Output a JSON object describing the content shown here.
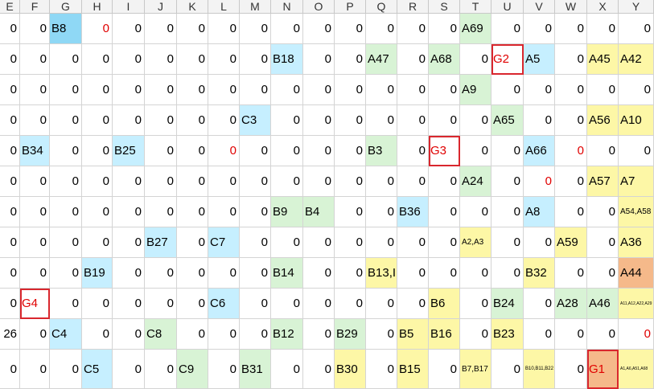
{
  "column_headers": [
    "E",
    "F",
    "G",
    "H",
    "I",
    "J",
    "K",
    "L",
    "M",
    "N",
    "O",
    "P",
    "Q",
    "R",
    "S",
    "T",
    "U",
    "V",
    "W",
    "X",
    "Y"
  ],
  "colors": {
    "blue": "#c6efff",
    "blue_strong": "#8fd8f5",
    "green": "#d8f3d5",
    "yellow": "#fdf7a6",
    "orange": "#f5b98a",
    "alert_red": "#d9272e"
  },
  "rows": [
    [
      {
        "t": "0"
      },
      {
        "t": "0"
      },
      {
        "t": "B8",
        "c": "blue_strong"
      },
      {
        "t": "0",
        "red": true
      },
      {
        "t": "0"
      },
      {
        "t": "0"
      },
      {
        "t": "0"
      },
      {
        "t": "0"
      },
      {
        "t": "0"
      },
      {
        "t": "0"
      },
      {
        "t": "0"
      },
      {
        "t": "0"
      },
      {
        "t": "0"
      },
      {
        "t": "0"
      },
      {
        "t": "0"
      },
      {
        "t": "A69",
        "c": "green"
      },
      {
        "t": "0"
      },
      {
        "t": "0"
      },
      {
        "t": "0"
      },
      {
        "t": "0"
      },
      {
        "t": "0"
      }
    ],
    [
      {
        "t": "0"
      },
      {
        "t": "0"
      },
      {
        "t": "0"
      },
      {
        "t": "0"
      },
      {
        "t": "0"
      },
      {
        "t": "0"
      },
      {
        "t": "0"
      },
      {
        "t": "0"
      },
      {
        "t": "0"
      },
      {
        "t": "B18",
        "c": "blue"
      },
      {
        "t": "0"
      },
      {
        "t": "0"
      },
      {
        "t": "A47",
        "c": "green"
      },
      {
        "t": "0"
      },
      {
        "t": "A68",
        "c": "green"
      },
      {
        "t": "0"
      },
      {
        "t": "G2",
        "red": true,
        "box": true
      },
      {
        "t": "A5",
        "c": "blue"
      },
      {
        "t": "0"
      },
      {
        "t": "A45",
        "c": "yellow"
      },
      {
        "t": "A42",
        "c": "yellow"
      }
    ],
    [
      {
        "t": "0"
      },
      {
        "t": "0"
      },
      {
        "t": "0"
      },
      {
        "t": "0"
      },
      {
        "t": "0"
      },
      {
        "t": "0"
      },
      {
        "t": "0"
      },
      {
        "t": "0"
      },
      {
        "t": "0"
      },
      {
        "t": "0"
      },
      {
        "t": "0"
      },
      {
        "t": "0"
      },
      {
        "t": "0"
      },
      {
        "t": "0"
      },
      {
        "t": "0"
      },
      {
        "t": "A9",
        "c": "green"
      },
      {
        "t": "0"
      },
      {
        "t": "0"
      },
      {
        "t": "0"
      },
      {
        "t": "0"
      },
      {
        "t": "0"
      }
    ],
    [
      {
        "t": "0"
      },
      {
        "t": "0"
      },
      {
        "t": "0"
      },
      {
        "t": "0"
      },
      {
        "t": "0"
      },
      {
        "t": "0"
      },
      {
        "t": "0"
      },
      {
        "t": "0"
      },
      {
        "t": "C3",
        "c": "blue"
      },
      {
        "t": "0"
      },
      {
        "t": "0"
      },
      {
        "t": "0"
      },
      {
        "t": "0"
      },
      {
        "t": "0"
      },
      {
        "t": "0"
      },
      {
        "t": "0"
      },
      {
        "t": "A65",
        "c": "green"
      },
      {
        "t": "0"
      },
      {
        "t": "0"
      },
      {
        "t": "A56",
        "c": "yellow"
      },
      {
        "t": "A10",
        "c": "yellow"
      }
    ],
    [
      {
        "t": "0"
      },
      {
        "t": "B34",
        "c": "blue"
      },
      {
        "t": "0"
      },
      {
        "t": "0"
      },
      {
        "t": "B25",
        "c": "blue"
      },
      {
        "t": "0"
      },
      {
        "t": "0"
      },
      {
        "t": "0",
        "red": true
      },
      {
        "t": "0"
      },
      {
        "t": "0"
      },
      {
        "t": "0"
      },
      {
        "t": "0"
      },
      {
        "t": "B3",
        "c": "green"
      },
      {
        "t": "0"
      },
      {
        "t": "G3",
        "red": true,
        "box": true
      },
      {
        "t": "0"
      },
      {
        "t": "0"
      },
      {
        "t": "A66",
        "c": "blue"
      },
      {
        "t": "0",
        "red": true
      },
      {
        "t": "0"
      },
      {
        "t": "0"
      }
    ],
    [
      {
        "t": "0"
      },
      {
        "t": "0"
      },
      {
        "t": "0"
      },
      {
        "t": "0"
      },
      {
        "t": "0"
      },
      {
        "t": "0"
      },
      {
        "t": "0"
      },
      {
        "t": "0"
      },
      {
        "t": "0"
      },
      {
        "t": "0"
      },
      {
        "t": "0"
      },
      {
        "t": "0"
      },
      {
        "t": "0"
      },
      {
        "t": "0"
      },
      {
        "t": "0"
      },
      {
        "t": "A24",
        "c": "green"
      },
      {
        "t": "0"
      },
      {
        "t": "0",
        "red": true
      },
      {
        "t": "0"
      },
      {
        "t": "A57",
        "c": "yellow"
      },
      {
        "t": "A7",
        "c": "yellow"
      }
    ],
    [
      {
        "t": "0"
      },
      {
        "t": "0"
      },
      {
        "t": "0"
      },
      {
        "t": "0"
      },
      {
        "t": "0"
      },
      {
        "t": "0"
      },
      {
        "t": "0"
      },
      {
        "t": "0"
      },
      {
        "t": "0"
      },
      {
        "t": "B9",
        "c": "green"
      },
      {
        "t": "B4",
        "c": "green"
      },
      {
        "t": "0"
      },
      {
        "t": "0"
      },
      {
        "t": "B36",
        "c": "blue"
      },
      {
        "t": "0"
      },
      {
        "t": "0"
      },
      {
        "t": "0"
      },
      {
        "t": "A8",
        "c": "blue"
      },
      {
        "t": "0"
      },
      {
        "t": "0"
      },
      {
        "t": "A54,A58",
        "c": "yellow",
        "s": "sm"
      }
    ],
    [
      {
        "t": "0"
      },
      {
        "t": "0"
      },
      {
        "t": "0"
      },
      {
        "t": "0"
      },
      {
        "t": "0"
      },
      {
        "t": "B27",
        "c": "blue"
      },
      {
        "t": "0"
      },
      {
        "t": "C7",
        "c": "blue"
      },
      {
        "t": "0"
      },
      {
        "t": "0"
      },
      {
        "t": "0"
      },
      {
        "t": "0"
      },
      {
        "t": "0"
      },
      {
        "t": "0"
      },
      {
        "t": "0"
      },
      {
        "t": "A2,A3",
        "c": "yellow",
        "s": "sm"
      },
      {
        "t": "0"
      },
      {
        "t": "0"
      },
      {
        "t": "A59",
        "c": "yellow"
      },
      {
        "t": "0"
      },
      {
        "t": "A36",
        "c": "yellow"
      }
    ],
    [
      {
        "t": "0"
      },
      {
        "t": "0"
      },
      {
        "t": "0"
      },
      {
        "t": "B19",
        "c": "blue"
      },
      {
        "t": "0"
      },
      {
        "t": "0"
      },
      {
        "t": "0"
      },
      {
        "t": "0"
      },
      {
        "t": "0"
      },
      {
        "t": "B14",
        "c": "green"
      },
      {
        "t": "0"
      },
      {
        "t": "0"
      },
      {
        "t": "B13,I",
        "c": "yellow"
      },
      {
        "t": "0"
      },
      {
        "t": "0"
      },
      {
        "t": "0"
      },
      {
        "t": "0"
      },
      {
        "t": "B32",
        "c": "yellow"
      },
      {
        "t": "0"
      },
      {
        "t": "0"
      },
      {
        "t": "A44",
        "c": "orange"
      }
    ],
    [
      {
        "t": "0"
      },
      {
        "t": "G4",
        "red": true,
        "box": true
      },
      {
        "t": "0"
      },
      {
        "t": "0"
      },
      {
        "t": "0"
      },
      {
        "t": "0"
      },
      {
        "t": "0"
      },
      {
        "t": "C6",
        "c": "blue"
      },
      {
        "t": "0"
      },
      {
        "t": "0"
      },
      {
        "t": "0"
      },
      {
        "t": "0"
      },
      {
        "t": "0"
      },
      {
        "t": "0"
      },
      {
        "t": "B6",
        "c": "yellow"
      },
      {
        "t": "0"
      },
      {
        "t": "B24",
        "c": "green"
      },
      {
        "t": "0"
      },
      {
        "t": "A28",
        "c": "green"
      },
      {
        "t": "A46",
        "c": "green"
      },
      {
        "t": "A11,A12,A22,A29",
        "c": "yellow",
        "s": "xxs"
      }
    ],
    [
      {
        "t": "26"
      },
      {
        "t": "0"
      },
      {
        "t": "C4",
        "c": "blue"
      },
      {
        "t": "0"
      },
      {
        "t": "0"
      },
      {
        "t": "C8",
        "c": "green"
      },
      {
        "t": "0"
      },
      {
        "t": "0"
      },
      {
        "t": "0"
      },
      {
        "t": "B12",
        "c": "green"
      },
      {
        "t": "0"
      },
      {
        "t": "B29",
        "c": "green"
      },
      {
        "t": "0"
      },
      {
        "t": "B5",
        "c": "yellow"
      },
      {
        "t": "B16",
        "c": "yellow"
      },
      {
        "t": "0"
      },
      {
        "t": "B23",
        "c": "yellow"
      },
      {
        "t": "0"
      },
      {
        "t": "0"
      },
      {
        "t": "0"
      },
      {
        "t": "0",
        "red": true
      }
    ],
    [
      {
        "t": "0"
      },
      {
        "t": "0"
      },
      {
        "t": "0"
      },
      {
        "t": "C5",
        "c": "blue"
      },
      {
        "t": "0"
      },
      {
        "t": "0"
      },
      {
        "t": "C9",
        "c": "green"
      },
      {
        "t": "0"
      },
      {
        "t": "B31",
        "c": "green"
      },
      {
        "t": "0"
      },
      {
        "t": "0"
      },
      {
        "t": "B30",
        "c": "yellow"
      },
      {
        "t": "0"
      },
      {
        "t": "B15",
        "c": "yellow"
      },
      {
        "t": "0"
      },
      {
        "t": "B7,B17",
        "c": "yellow",
        "s": "sm"
      },
      {
        "t": "0"
      },
      {
        "t": "B10,B11,B22",
        "c": "yellow",
        "s": "xs"
      },
      {
        "t": "0"
      },
      {
        "t": "G1",
        "red": true,
        "box": true,
        "c": "orange"
      },
      {
        "t": "A1,A6,A51,A68",
        "c": "yellow",
        "s": "xxs"
      }
    ]
  ]
}
